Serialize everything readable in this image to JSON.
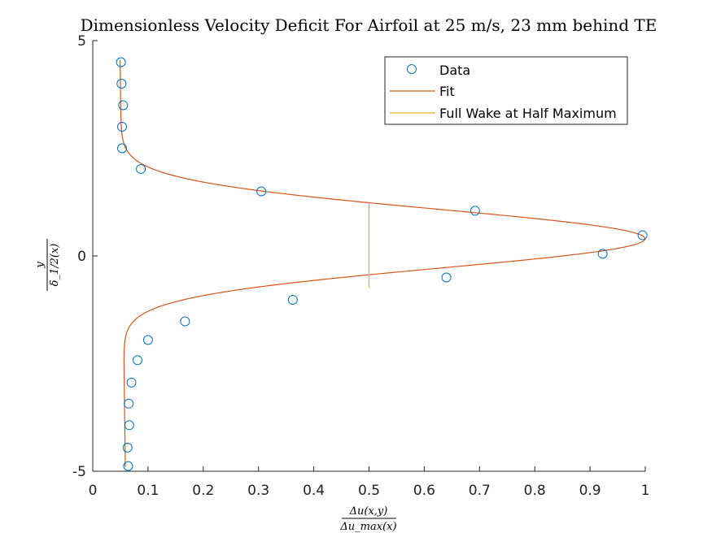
{
  "chart_data": {
    "type": "scatter",
    "title": "Dimensionless Velocity Deficit For Airfoil at 25 m/s, 23 mm behind TE",
    "xlabel_num": "Δu(x,y)",
    "xlabel_den": "Δu_max(x)",
    "ylabel_num": "y",
    "ylabel_den": "δ_1/2(x)",
    "xlim": [
      0,
      1
    ],
    "ylim": [
      -5,
      5
    ],
    "xticks": [
      0,
      0.1,
      0.2,
      0.3,
      0.4,
      0.5,
      0.6,
      0.7,
      0.8,
      0.9,
      1
    ],
    "xtick_labels": [
      "0",
      "0.1",
      "0.2",
      "0.3",
      "0.4",
      "0.5",
      "0.6",
      "0.7",
      "0.8",
      "0.9",
      "1"
    ],
    "yticks": [
      -5,
      0,
      5
    ],
    "ytick_labels": [
      "-5",
      "0",
      "5"
    ],
    "legend": {
      "position": "top-right",
      "entries": [
        "Data",
        "Fit",
        "Full Wake at Half Maximum"
      ]
    },
    "colors": {
      "data": "#0072BD",
      "fit": "#D95319",
      "half": "#EDB120"
    },
    "series": [
      {
        "name": "Data",
        "style": "markers",
        "points": [
          [
            0.051,
            4.5
          ],
          [
            0.052,
            4.0
          ],
          [
            0.055,
            3.5
          ],
          [
            0.053,
            3.0
          ],
          [
            0.053,
            2.5
          ],
          [
            0.087,
            2.02
          ],
          [
            0.305,
            1.5
          ],
          [
            0.692,
            1.05
          ],
          [
            0.995,
            0.48
          ],
          [
            0.923,
            0.05
          ],
          [
            0.64,
            -0.5
          ],
          [
            0.362,
            -1.02
          ],
          [
            0.167,
            -1.52
          ],
          [
            0.1,
            -1.95
          ],
          [
            0.081,
            -2.42
          ],
          [
            0.07,
            -2.94
          ],
          [
            0.065,
            -3.43
          ],
          [
            0.066,
            -3.93
          ],
          [
            0.063,
            -4.45
          ],
          [
            0.064,
            -4.88
          ]
        ]
      },
      {
        "name": "Fit",
        "style": "line",
        "model": {
          "baseline": 0.054,
          "baseline_slope": -0.001,
          "amplitude": 0.946,
          "center": 0.4,
          "sigma": 0.965
        }
      },
      {
        "name": "Full Wake at Half Maximum",
        "style": "line",
        "points": [
          [
            0.5,
            1.24
          ],
          [
            0.5,
            -0.74
          ]
        ]
      }
    ]
  }
}
